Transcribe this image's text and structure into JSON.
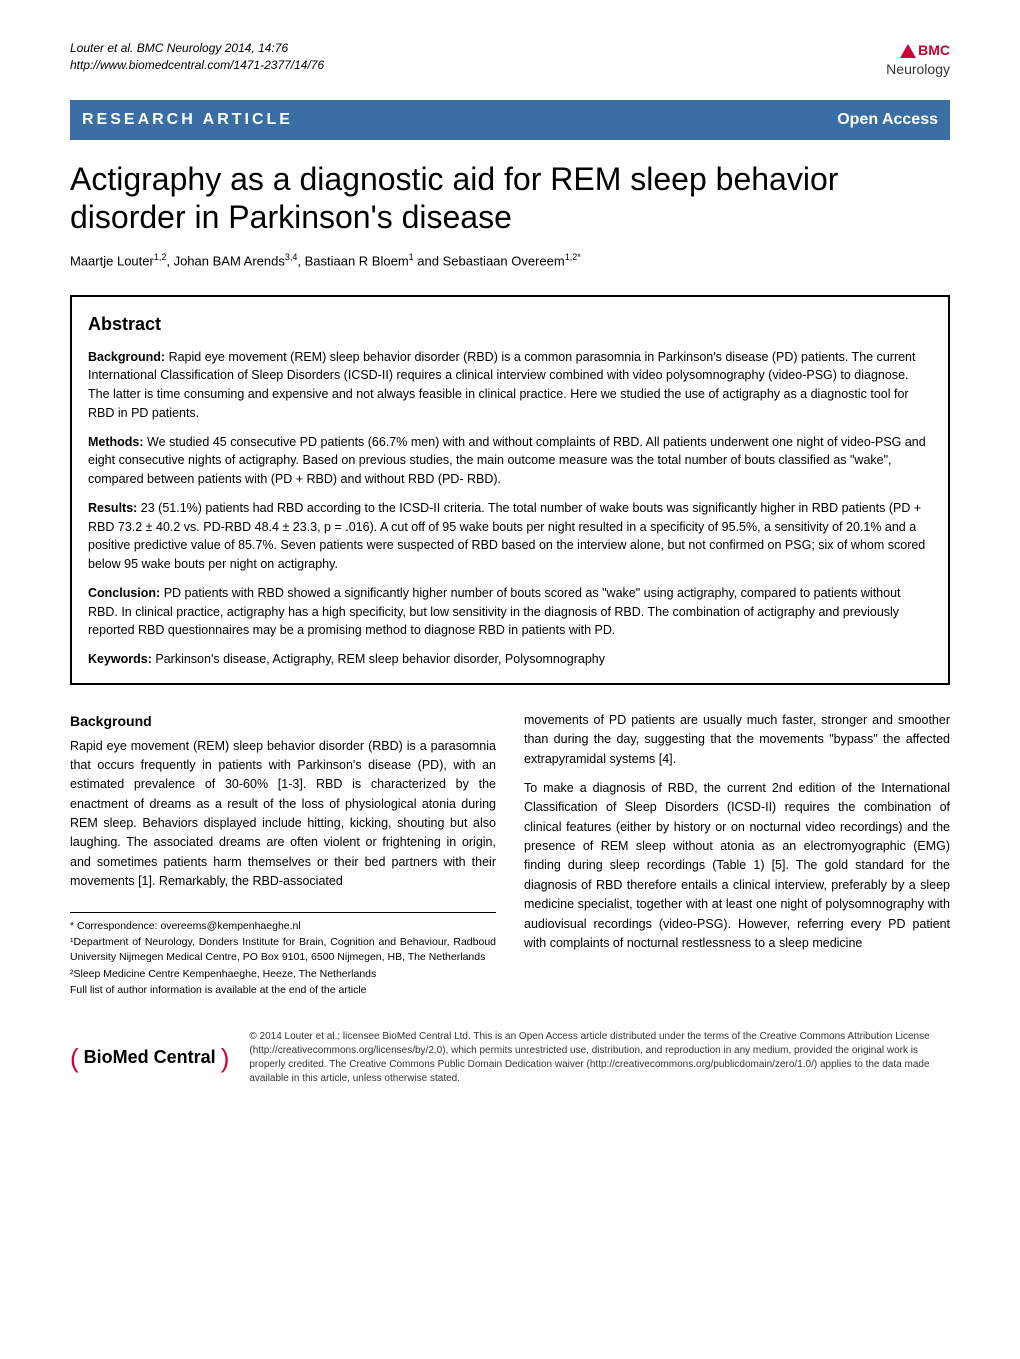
{
  "header": {
    "citation_line1": "Louter et al. BMC Neurology 2014, 14:76",
    "citation_line2": "http://www.biomedcentral.com/1471-2377/14/76",
    "logo_bmc": "BMC",
    "logo_sub": "Neurology",
    "logo_color": "#c03"
  },
  "banner": {
    "left": "RESEARCH ARTICLE",
    "right": "Open Access",
    "background_color": "#3a6ea5"
  },
  "title": "Actigraphy as a diagnostic aid for REM sleep behavior disorder in Parkinson's disease",
  "authors": "Maartje Louter",
  "authors_sup1": "1,2",
  "authors_2": ", Johan BAM Arends",
  "authors_sup2": "3,4",
  "authors_3": ", Bastiaan R Bloem",
  "authors_sup3": "1",
  "authors_4": " and Sebastiaan Overeem",
  "authors_sup4": "1,2*",
  "abstract": {
    "title": "Abstract",
    "background_label": "Background:",
    "background_text": " Rapid eye movement (REM) sleep behavior disorder (RBD) is a common parasomnia in Parkinson's disease (PD) patients. The current International Classification of Sleep Disorders (ICSD-II) requires a clinical interview combined with video polysomnography (video-PSG) to diagnose. The latter is time consuming and expensive and not always feasible in clinical practice. Here we studied the use of actigraphy as a diagnostic tool for RBD in PD patients.",
    "methods_label": "Methods:",
    "methods_text": " We studied 45 consecutive PD patients (66.7% men) with and without complaints of RBD. All patients underwent one night of video-PSG and eight consecutive nights of actigraphy. Based on previous studies, the main outcome measure was the total number of bouts classified as \"wake\", compared between patients with (PD + RBD) and without RBD (PD- RBD).",
    "results_label": "Results:",
    "results_text": " 23 (51.1%) patients had RBD according to the ICSD-II criteria. The total number of wake bouts was significantly higher in RBD patients (PD + RBD 73.2 ± 40.2 vs. PD-RBD 48.4 ± 23.3, p = .016). A cut off of 95 wake bouts per night resulted in a specificity of 95.5%, a sensitivity of 20.1% and a positive predictive value of 85.7%. Seven patients were suspected of RBD based on the interview alone, but not confirmed on PSG; six of whom scored below 95 wake bouts per night on actigraphy.",
    "conclusion_label": "Conclusion:",
    "conclusion_text": " PD patients with RBD showed a significantly higher number of bouts scored as \"wake\" using actigraphy, compared to patients without RBD. In clinical practice, actigraphy has a high specificity, but low sensitivity in the diagnosis of RBD. The combination of actigraphy and previously reported RBD questionnaires may be a promising method to diagnose RBD in patients with PD.",
    "keywords_label": "Keywords:",
    "keywords_text": " Parkinson's disease, Actigraphy, REM sleep behavior disorder, Polysomnography"
  },
  "body": {
    "heading": "Background",
    "left_p1": "Rapid eye movement (REM) sleep behavior disorder (RBD) is a parasomnia that occurs frequently in patients with Parkinson's disease (PD), with an estimated prevalence of 30-60% [1-3]. RBD is characterized by the enactment of dreams as a result of the loss of physiological atonia during REM sleep. Behaviors displayed include hitting, kicking, shouting but also laughing. The associated dreams are often violent or frightening in origin, and sometimes patients harm themselves or their bed partners with their movements [1]. Remarkably, the RBD-associated",
    "right_p1": "movements of PD patients are usually much faster, stronger and smoother than during the day, suggesting that the movements \"bypass\" the affected extrapyramidal systems [4].",
    "right_p2": "To make a diagnosis of RBD, the current 2nd edition of the International Classification of Sleep Disorders (ICSD-II) requires the combination of clinical features (either by history or on nocturnal video recordings) and the presence of REM sleep without atonia as an electromyographic (EMG) finding during sleep recordings (Table 1) [5]. The gold standard for the diagnosis of RBD therefore entails a clinical interview, preferably by a sleep medicine specialist, together with at least one night of polysomnography with audiovisual recordings (video-PSG). However, referring every PD patient with complaints of nocturnal restlessness to a sleep medicine"
  },
  "footnotes": {
    "correspondence": "* Correspondence: overeems@kempenhaeghe.nl",
    "affil1": "¹Department of Neurology, Donders Institute for Brain, Cognition and Behaviour, Radboud University Nijmegen Medical Centre, PO Box 9101, 6500 Nijmegen, HB, The Netherlands",
    "affil2": "²Sleep Medicine Centre Kempenhaeghe, Heeze, The Netherlands",
    "full_list": "Full list of author information is available at the end of the article"
  },
  "footer": {
    "logo_text": " BioMed Central ",
    "license": "© 2014 Louter et al.; licensee BioMed Central Ltd. This is an Open Access article distributed under the terms of the Creative Commons Attribution License (http://creativecommons.org/licenses/by/2.0), which permits unrestricted use, distribution, and reproduction in any medium, provided the original work is properly credited. The Creative Commons Public Domain Dedication waiver (http://creativecommons.org/publicdomain/zero/1.0/) applies to the data made available in this article, unless otherwise stated."
  }
}
